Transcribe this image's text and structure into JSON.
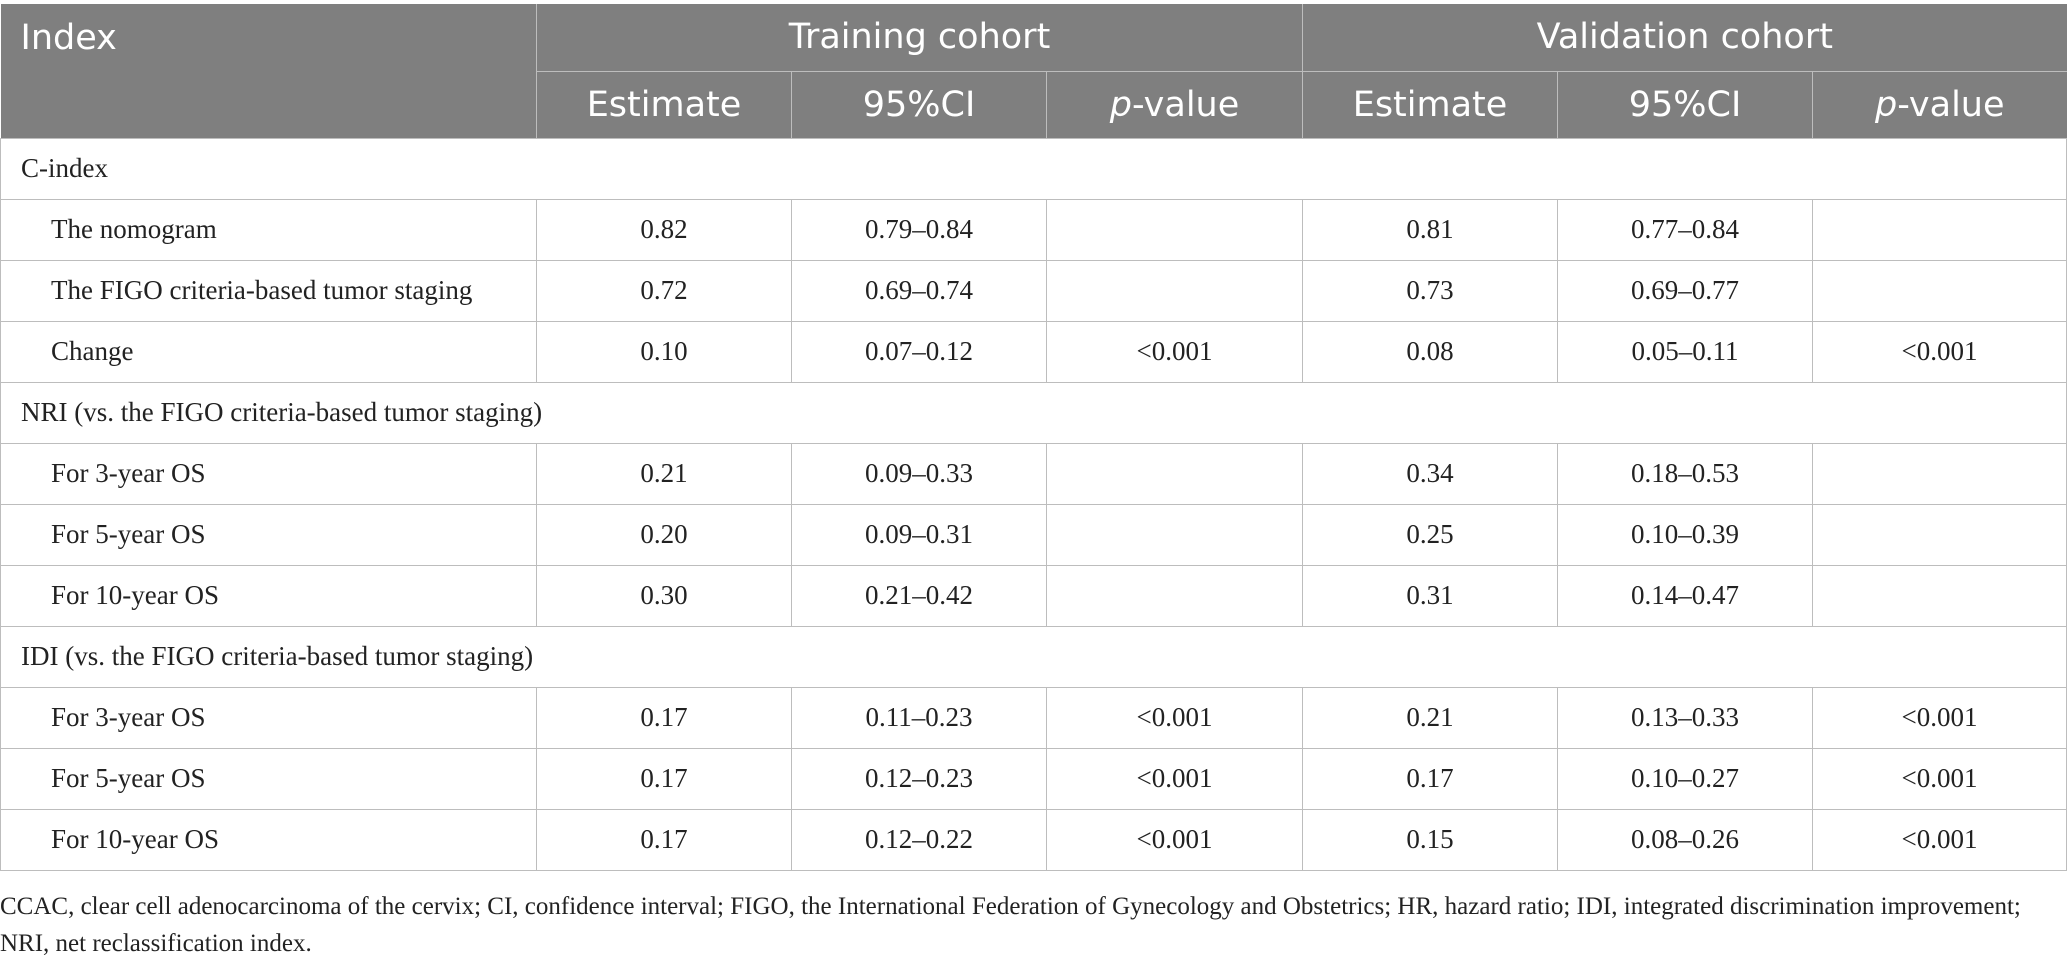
{
  "header": {
    "index_label": "Index",
    "training_label": "Training cohort",
    "validation_label": "Validation cohort",
    "estimate_label": "Estimate",
    "ci_label": "95%CI",
    "p_italic": "p",
    "p_suffix": "-value"
  },
  "sections": [
    {
      "label": "C-index",
      "rows": [
        {
          "label": "The nomogram",
          "t_est": "0.82",
          "t_ci": "0.79–0.84",
          "t_p": "",
          "v_est": "0.81",
          "v_ci": "0.77–0.84",
          "v_p": ""
        },
        {
          "label": "The FIGO criteria-based tumor staging",
          "t_est": "0.72",
          "t_ci": "0.69–0.74",
          "t_p": "",
          "v_est": "0.73",
          "v_ci": "0.69–0.77",
          "v_p": ""
        },
        {
          "label": "Change",
          "t_est": "0.10",
          "t_ci": "0.07–0.12",
          "t_p": "<0.001",
          "v_est": "0.08",
          "v_ci": "0.05–0.11",
          "v_p": "<0.001"
        }
      ]
    },
    {
      "label": "NRI (vs. the FIGO criteria-based tumor staging)",
      "rows": [
        {
          "label": "For 3-year OS",
          "t_est": "0.21",
          "t_ci": "0.09–0.33",
          "t_p": "",
          "v_est": "0.34",
          "v_ci": "0.18–0.53",
          "v_p": ""
        },
        {
          "label": "For 5-year OS",
          "t_est": "0.20",
          "t_ci": "0.09–0.31",
          "t_p": "",
          "v_est": "0.25",
          "v_ci": "0.10–0.39",
          "v_p": ""
        },
        {
          "label": "For 10-year OS",
          "t_est": "0.30",
          "t_ci": "0.21–0.42",
          "t_p": "",
          "v_est": "0.31",
          "v_ci": "0.14–0.47",
          "v_p": ""
        }
      ]
    },
    {
      "label": "IDI (vs. the FIGO criteria-based tumor staging)",
      "rows": [
        {
          "label": "For 3-year OS",
          "t_est": "0.17",
          "t_ci": "0.11–0.23",
          "t_p": "<0.001",
          "v_est": "0.21",
          "v_ci": "0.13–0.33",
          "v_p": "<0.001"
        },
        {
          "label": "For 5-year OS",
          "t_est": "0.17",
          "t_ci": "0.12–0.23",
          "t_p": "<0.001",
          "v_est": "0.17",
          "v_ci": "0.10–0.27",
          "v_p": "<0.001"
        },
        {
          "label": "For 10-year OS",
          "t_est": "0.17",
          "t_ci": "0.12–0.22",
          "t_p": "<0.001",
          "v_est": "0.15",
          "v_ci": "0.08–0.26",
          "v_p": "<0.001"
        }
      ]
    }
  ],
  "footnote": "CCAC, clear cell adenocarcinoma of the cervix; CI, confidence interval; FIGO, the International Federation of Gynecology and Obstetrics; HR, hazard ratio; IDI, integrated discrimination improvement; NRI, net reclassification index.",
  "colors": {
    "header_bg": "#7f7f7f",
    "header_text": "#ffffff",
    "grid_line": "#bdbdbd",
    "body_text": "#222222"
  }
}
